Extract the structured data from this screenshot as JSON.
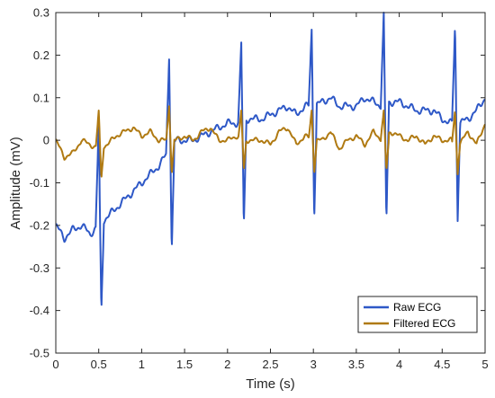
{
  "chart_data": {
    "type": "line",
    "title": "",
    "xlabel": "Time (s)",
    "ylabel": "Amplitude (mV)",
    "xlim": [
      0,
      5
    ],
    "ylim": [
      -0.5,
      0.3
    ],
    "xticks": [
      0,
      0.5,
      1,
      1.5,
      2,
      2.5,
      3,
      3.5,
      4,
      4.5,
      5
    ],
    "yticks": [
      -0.5,
      -0.4,
      -0.3,
      -0.2,
      -0.1,
      0,
      0.1,
      0.2,
      0.3
    ],
    "grid": false,
    "legend_position": "bottom-right",
    "beats": [
      {
        "t": 0.5,
        "raw_peak": 0.04,
        "raw_trough": -0.4,
        "filtered_peak": 0.07,
        "filtered_trough": -0.09
      },
      {
        "t": 1.32,
        "raw_peak": 0.19,
        "raw_trough": -0.26,
        "filtered_peak": 0.08,
        "filtered_trough": -0.08
      },
      {
        "t": 2.16,
        "raw_peak": 0.23,
        "raw_trough": -0.2,
        "filtered_peak": 0.07,
        "filtered_trough": -0.07
      },
      {
        "t": 2.98,
        "raw_peak": 0.26,
        "raw_trough": -0.19,
        "filtered_peak": 0.07,
        "filtered_trough": -0.08
      },
      {
        "t": 3.82,
        "raw_peak": 0.3,
        "raw_trough": -0.19,
        "filtered_peak": 0.07,
        "filtered_trough": -0.07
      },
      {
        "t": 4.65,
        "raw_peak": 0.27,
        "raw_trough": -0.19,
        "filtered_peak": 0.07,
        "filtered_trough": -0.08
      }
    ],
    "series": [
      {
        "name": "Raw ECG",
        "color": "#2e58c7",
        "x": [
          0,
          0.1,
          0.2,
          0.3,
          0.4,
          0.5,
          0.6,
          0.7,
          0.8,
          0.9,
          1.0,
          1.1,
          1.2,
          1.3,
          1.4,
          1.5,
          1.6,
          1.7,
          1.8,
          1.9,
          2.0,
          2.1,
          2.2,
          2.3,
          2.4,
          2.5,
          2.6,
          2.7,
          2.8,
          2.9,
          3.0,
          3.1,
          3.2,
          3.3,
          3.4,
          3.5,
          3.6,
          3.7,
          3.8,
          3.9,
          4.0,
          4.1,
          4.2,
          4.3,
          4.4,
          4.5,
          4.6,
          4.7,
          4.8,
          4.9,
          5.0
        ],
        "y": [
          -0.2,
          -0.23,
          -0.21,
          -0.2,
          -0.22,
          -0.2,
          -0.18,
          -0.16,
          -0.14,
          -0.12,
          -0.1,
          -0.08,
          -0.06,
          -0.03,
          0.0,
          0.0,
          0.0,
          0.01,
          0.02,
          0.03,
          0.04,
          0.04,
          0.05,
          0.05,
          0.05,
          0.06,
          0.07,
          0.08,
          0.06,
          0.08,
          0.08,
          0.09,
          0.1,
          0.08,
          0.08,
          0.08,
          0.1,
          0.09,
          0.08,
          0.09,
          0.09,
          0.08,
          0.07,
          0.07,
          0.07,
          0.05,
          0.04,
          0.04,
          0.05,
          0.07,
          0.1
        ]
      },
      {
        "name": "Filtered ECG",
        "color": "#b07a12",
        "x": [
          0,
          0.1,
          0.2,
          0.3,
          0.4,
          0.5,
          0.6,
          0.7,
          0.8,
          0.9,
          1.0,
          1.1,
          1.2,
          1.3,
          1.4,
          1.5,
          1.6,
          1.7,
          1.8,
          1.9,
          2.0,
          2.1,
          2.2,
          2.3,
          2.4,
          2.5,
          2.6,
          2.7,
          2.8,
          2.9,
          3.0,
          3.1,
          3.2,
          3.3,
          3.4,
          3.5,
          3.6,
          3.7,
          3.8,
          3.9,
          4.0,
          4.1,
          4.2,
          4.3,
          4.4,
          4.5,
          4.6,
          4.7,
          4.8,
          4.9,
          5.0
        ],
        "y": [
          0.0,
          -0.04,
          -0.03,
          0.0,
          -0.01,
          -0.02,
          -0.01,
          0.01,
          0.02,
          0.03,
          0.01,
          0.02,
          0.0,
          0.0,
          0.0,
          0.01,
          0.0,
          0.02,
          0.03,
          0.0,
          0.0,
          0.01,
          0.0,
          0.0,
          0.0,
          -0.01,
          0.02,
          0.03,
          -0.01,
          0.01,
          0.0,
          0.0,
          0.02,
          -0.02,
          0.0,
          0.01,
          -0.01,
          0.02,
          0.0,
          0.02,
          0.01,
          0.0,
          0.01,
          -0.01,
          0.01,
          0.0,
          0.0,
          -0.01,
          0.02,
          -0.01,
          0.04
        ]
      }
    ]
  }
}
